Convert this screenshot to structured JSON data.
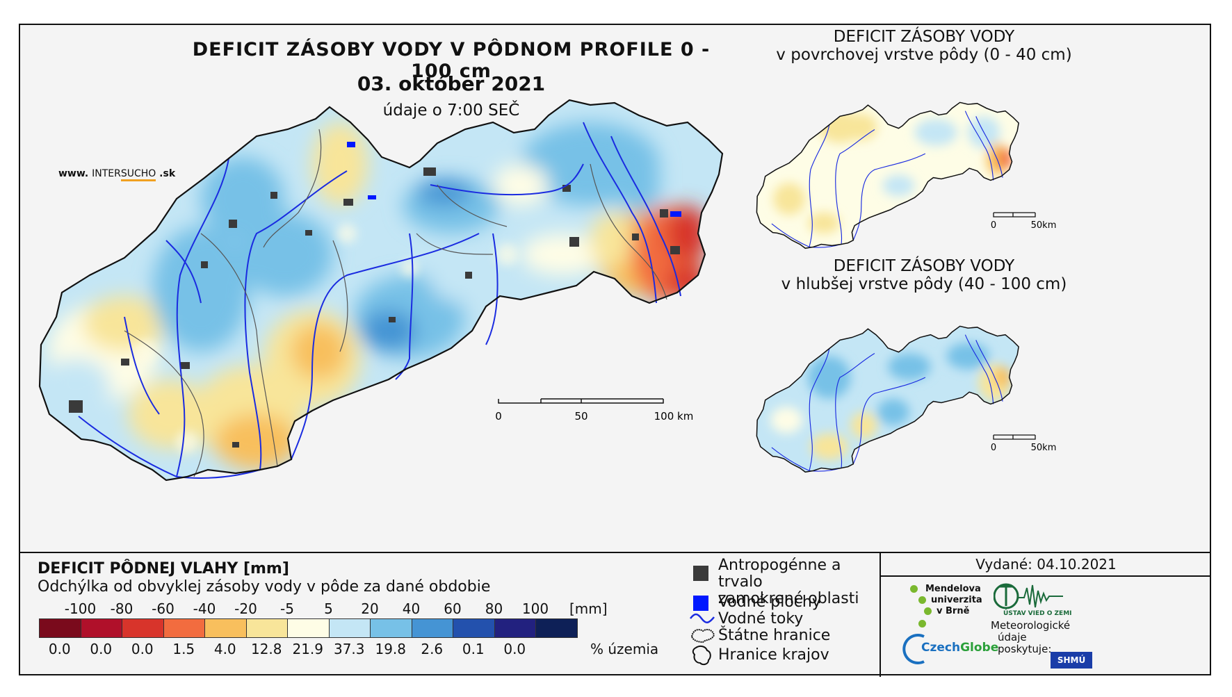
{
  "main": {
    "title": "DEFICIT ZÁSOBY VODY V PÔDNOM PROFILE 0 - 100 cm",
    "date": "03. október 2021",
    "time_note": "údaje o 7:00 SEČ",
    "website": {
      "prefix": "www. ",
      "brand_a": "INTER",
      "brand_b": "SUCHO",
      "suffix": " .sk"
    },
    "scale": {
      "labels": [
        "0",
        "50",
        "100 km"
      ]
    }
  },
  "inset_top": {
    "title_line1": "DEFICIT ZÁSOBY VODY",
    "title_line2": "v povrchovej vrstve pôdy (0 - 40 cm)",
    "scale": {
      "labels": [
        "0",
        "50km"
      ]
    }
  },
  "inset_bottom": {
    "title_line1": "DEFICIT ZÁSOBY VODY",
    "title_line2": "v hlubšej vrstve pôdy (40 - 100 cm)",
    "scale": {
      "labels": [
        "0",
        "50km"
      ]
    }
  },
  "legend": {
    "title": "DEFICIT PÔDNEJ VLAHY [mm]",
    "subtitle": "Odchýlka od obvyklej zásoby vody v pôde za dané obdobie",
    "ticks": [
      "-100",
      "-80",
      "-60",
      "-40",
      "-20",
      "-5",
      "5",
      "20",
      "40",
      "60",
      "80",
      "100"
    ],
    "unit": "[mm]",
    "colors": [
      "#7a0a1c",
      "#b0102a",
      "#d8342b",
      "#f26c3f",
      "#f8bf5d",
      "#f8e59a",
      "#fefde6",
      "#c4e6f5",
      "#77c1e7",
      "#4594d4",
      "#2351ad",
      "#22217f",
      "#0e2057"
    ],
    "percentages": [
      "0.0",
      "0.0",
      "0.0",
      "1.5",
      "4.0",
      "12.8",
      "21.9",
      "37.3",
      "19.8",
      "2.6",
      "0.1",
      "0.0"
    ],
    "pct_unit": "% územia"
  },
  "map_legend": {
    "items": [
      {
        "label_line1": "Antropogénne a trvalo",
        "label_line2": "zamokrené oblasti",
        "icon": "grey-square-icon",
        "color": "#3a3a3a"
      },
      {
        "label_line1": "Vodné plochy",
        "label_line2": "",
        "icon": "blue-square-icon",
        "color": "#0018ff"
      },
      {
        "label_line1": "Vodné toky",
        "label_line2": "",
        "icon": "river-line-icon",
        "color": "#1a2be0"
      },
      {
        "label_line1": "Štátne hranice",
        "label_line2": "",
        "icon": "state-border-icon",
        "color": "#111111"
      },
      {
        "label_line1": "Hranice krajov",
        "label_line2": "",
        "icon": "region-border-icon",
        "color": "#111111"
      }
    ]
  },
  "issued": {
    "label": "Vydané: 04.10.2021"
  },
  "partners": {
    "mendel": [
      "Mendelova",
      "univerzita",
      "v Brně"
    ],
    "czechglobe_a": "Czech",
    "czechglobe_b": "Globe",
    "uvgz": "ÚSTAV VIED O ZEMI",
    "meteo": [
      "Meteorologické",
      "údaje",
      "poskytuje:"
    ],
    "shmu": "SHMÚ"
  }
}
